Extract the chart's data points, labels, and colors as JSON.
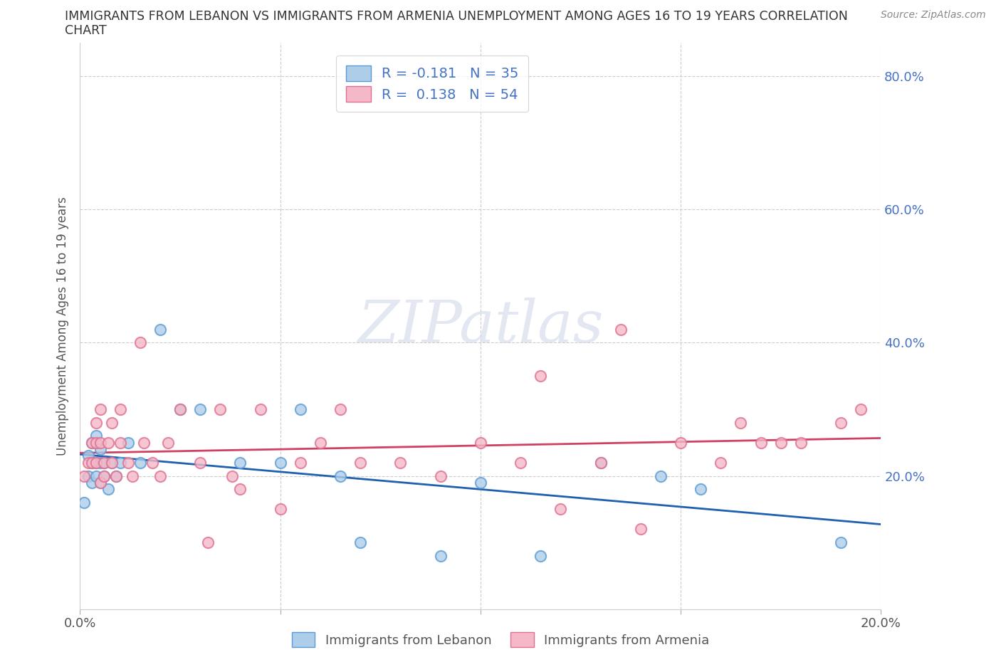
{
  "title_line1": "IMMIGRANTS FROM LEBANON VS IMMIGRANTS FROM ARMENIA UNEMPLOYMENT AMONG AGES 16 TO 19 YEARS CORRELATION",
  "title_line2": "CHART",
  "source": "Source: ZipAtlas.com",
  "ylabel": "Unemployment Among Ages 16 to 19 years",
  "xlim": [
    0.0,
    0.2
  ],
  "ylim": [
    0.0,
    0.85
  ],
  "x_ticks": [
    0.0,
    0.05,
    0.1,
    0.15,
    0.2
  ],
  "y_ticks": [
    0.0,
    0.2,
    0.4,
    0.6,
    0.8
  ],
  "blue_fill": "#aecde8",
  "pink_fill": "#f4b8c8",
  "blue_edge": "#5b9bd5",
  "pink_edge": "#e07090",
  "blue_line_color": "#2060b0",
  "pink_line_color": "#d04060",
  "legend_label_blue": "Immigrants from Lebanon",
  "legend_label_pink": "Immigrants from Armenia",
  "watermark": "ZIPatlas",
  "blue_R": -0.181,
  "blue_N": 35,
  "pink_R": 0.138,
  "pink_N": 54,
  "blue_scatter_x": [
    0.001,
    0.002,
    0.002,
    0.003,
    0.003,
    0.003,
    0.004,
    0.004,
    0.004,
    0.005,
    0.005,
    0.005,
    0.006,
    0.006,
    0.007,
    0.008,
    0.009,
    0.01,
    0.012,
    0.015,
    0.02,
    0.025,
    0.03,
    0.04,
    0.05,
    0.055,
    0.065,
    0.07,
    0.09,
    0.1,
    0.115,
    0.13,
    0.145,
    0.155,
    0.19
  ],
  "blue_scatter_y": [
    0.16,
    0.2,
    0.23,
    0.25,
    0.22,
    0.19,
    0.26,
    0.22,
    0.2,
    0.24,
    0.22,
    0.19,
    0.22,
    0.2,
    0.18,
    0.22,
    0.2,
    0.22,
    0.25,
    0.22,
    0.42,
    0.3,
    0.3,
    0.22,
    0.22,
    0.3,
    0.2,
    0.1,
    0.08,
    0.19,
    0.08,
    0.22,
    0.2,
    0.18,
    0.1
  ],
  "pink_scatter_x": [
    0.001,
    0.002,
    0.003,
    0.003,
    0.004,
    0.004,
    0.004,
    0.005,
    0.005,
    0.005,
    0.006,
    0.006,
    0.007,
    0.008,
    0.008,
    0.009,
    0.01,
    0.01,
    0.012,
    0.013,
    0.015,
    0.016,
    0.018,
    0.02,
    0.022,
    0.025,
    0.03,
    0.032,
    0.035,
    0.038,
    0.04,
    0.045,
    0.05,
    0.055,
    0.06,
    0.065,
    0.07,
    0.08,
    0.09,
    0.1,
    0.11,
    0.115,
    0.12,
    0.13,
    0.135,
    0.14,
    0.15,
    0.16,
    0.165,
    0.17,
    0.175,
    0.18,
    0.19,
    0.195
  ],
  "pink_scatter_y": [
    0.2,
    0.22,
    0.25,
    0.22,
    0.28,
    0.25,
    0.22,
    0.3,
    0.25,
    0.19,
    0.22,
    0.2,
    0.25,
    0.28,
    0.22,
    0.2,
    0.25,
    0.3,
    0.22,
    0.2,
    0.4,
    0.25,
    0.22,
    0.2,
    0.25,
    0.3,
    0.22,
    0.1,
    0.3,
    0.2,
    0.18,
    0.3,
    0.15,
    0.22,
    0.25,
    0.3,
    0.22,
    0.22,
    0.2,
    0.25,
    0.22,
    0.35,
    0.15,
    0.22,
    0.42,
    0.12,
    0.25,
    0.22,
    0.28,
    0.25,
    0.25,
    0.25,
    0.28,
    0.3
  ],
  "background_color": "#ffffff",
  "grid_color": "#cccccc",
  "tick_label_color": "#4472c4"
}
